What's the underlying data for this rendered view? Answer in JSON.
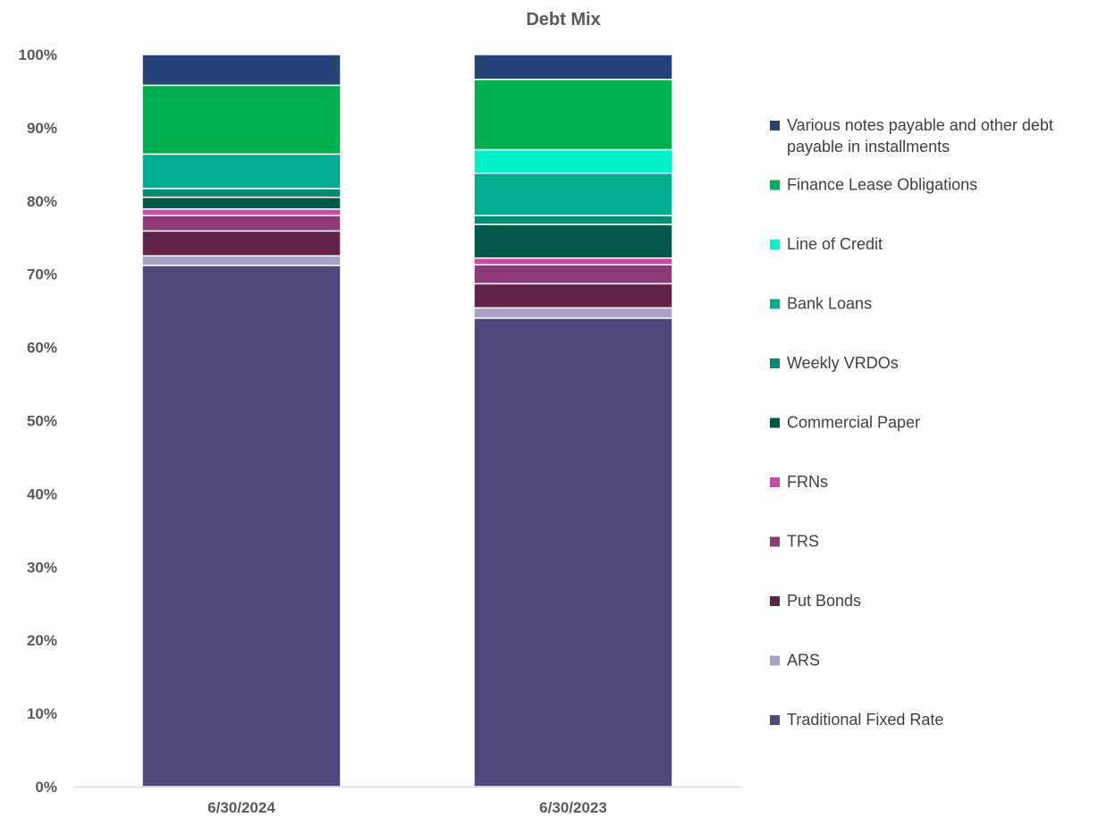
{
  "chart_data": {
    "type": "bar",
    "stacked": true,
    "title": "Debt Mix",
    "categories": [
      "6/30/2024",
      "6/30/2023"
    ],
    "ylim": [
      0,
      100
    ],
    "yticks": [
      "0%",
      "10%",
      "20%",
      "30%",
      "40%",
      "50%",
      "60%",
      "70%",
      "80%",
      "90%",
      "100%"
    ],
    "grid": false,
    "legend_position": "right",
    "series": [
      {
        "name": "Traditional Fixed Rate",
        "color": "#51477b",
        "values": [
          71.2,
          64.0
        ]
      },
      {
        "name": "ARS",
        "color": "#a9a1c8",
        "values": [
          1.3,
          1.4
        ]
      },
      {
        "name": "Put Bonds",
        "color": "#62234a",
        "values": [
          3.4,
          3.3
        ]
      },
      {
        "name": "TRS",
        "color": "#8e3a77",
        "values": [
          2.1,
          2.6
        ]
      },
      {
        "name": "FRNs",
        "color": "#c64aa8",
        "values": [
          0.9,
          0.9
        ]
      },
      {
        "name": "Commercial Paper",
        "color": "#005948",
        "values": [
          1.6,
          4.6
        ]
      },
      {
        "name": "Weekly VRDOs",
        "color": "#008c72",
        "values": [
          1.2,
          1.2
        ]
      },
      {
        "name": "Bank Loans",
        "color": "#00ae8f",
        "values": [
          4.7,
          5.8
        ]
      },
      {
        "name": "Line of Credit",
        "color": "#00f0c8",
        "values": [
          0.0,
          3.2
        ]
      },
      {
        "name": "Finance Lease Obligations",
        "color": "#00b050",
        "values": [
          9.4,
          9.6
        ]
      },
      {
        "name": "Various notes payable and other debt payable in installments",
        "color": "#264478",
        "values": [
          4.2,
          3.4
        ]
      }
    ]
  }
}
